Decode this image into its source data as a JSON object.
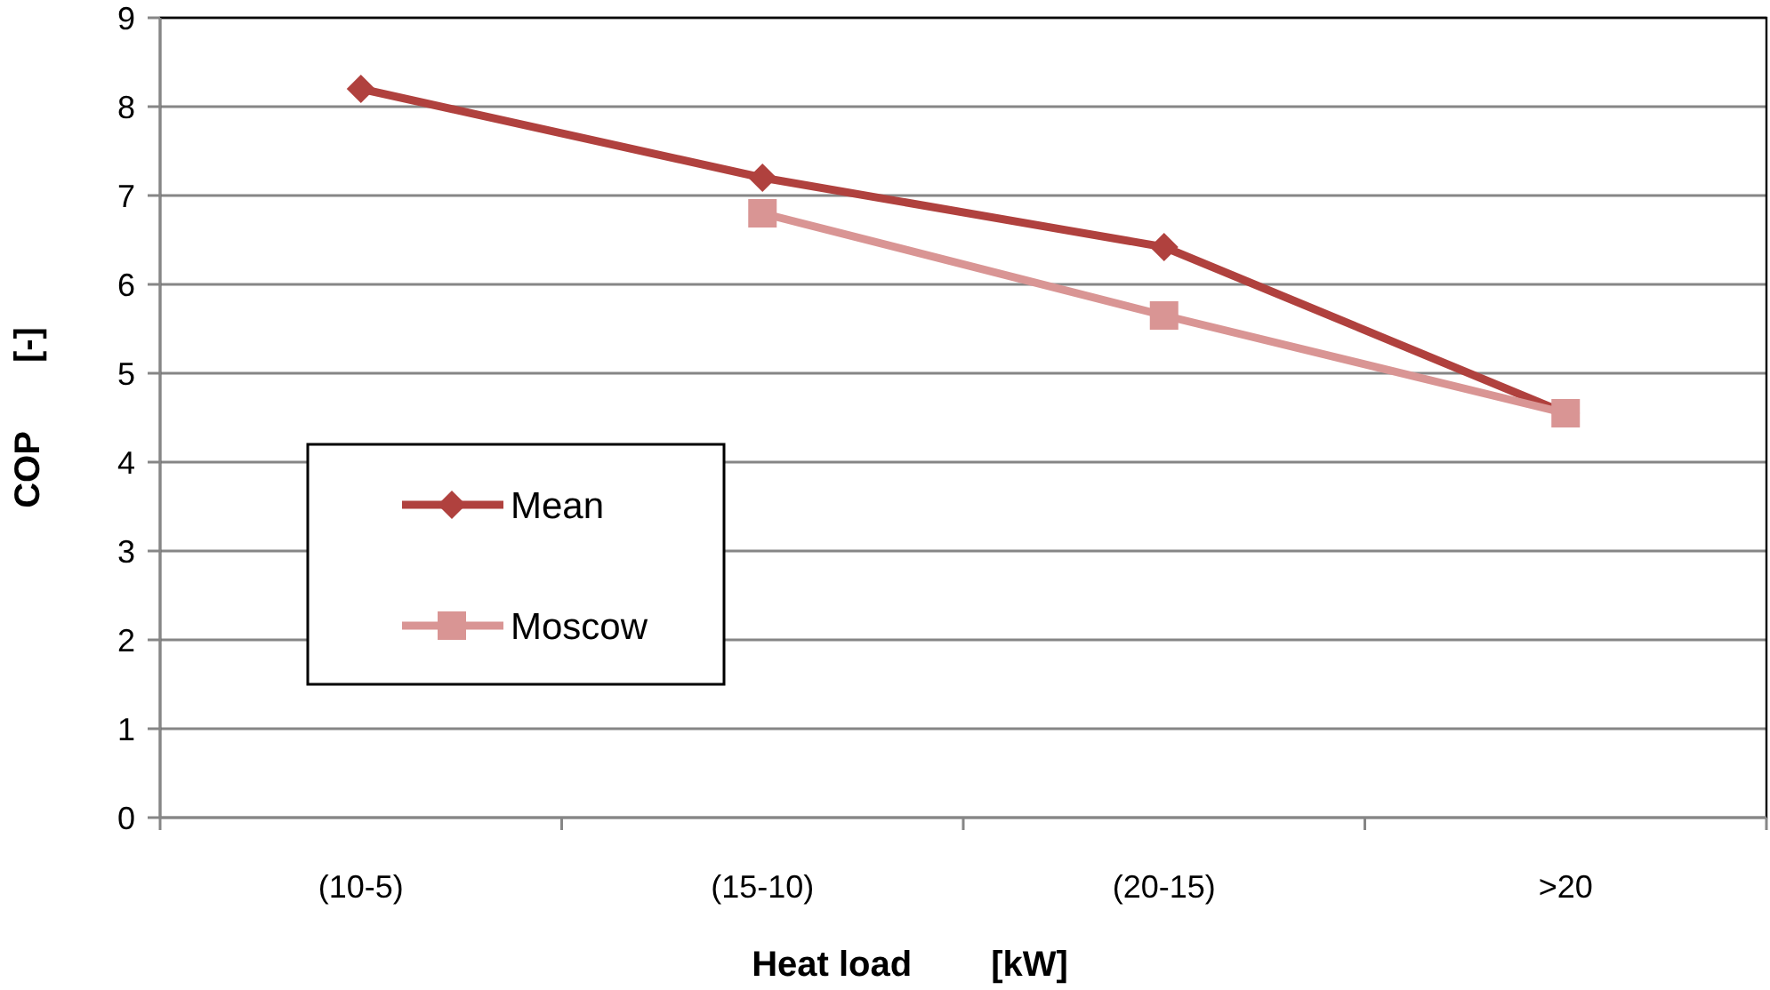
{
  "chart_data": {
    "type": "line",
    "xlabel": "Heat load        [kW]",
    "ylabel": "COP       [-]",
    "categories": [
      "(10-5)",
      "(15-10)",
      "(20-15)",
      ">20"
    ],
    "series": [
      {
        "name": "Mean",
        "color": "#b0413e",
        "values": [
          8.2,
          7.2,
          6.42,
          4.55
        ],
        "marker": "diamond"
      },
      {
        "name": "Moscow",
        "color": "#d99594",
        "values": [
          null,
          6.8,
          5.65,
          4.55
        ],
        "marker": "square"
      }
    ],
    "ylim": [
      0,
      9
    ],
    "yticks": [
      0,
      1,
      2,
      3,
      4,
      5,
      6,
      7,
      8,
      9
    ],
    "grid": "y",
    "legend": "left",
    "line_style": "solid"
  }
}
